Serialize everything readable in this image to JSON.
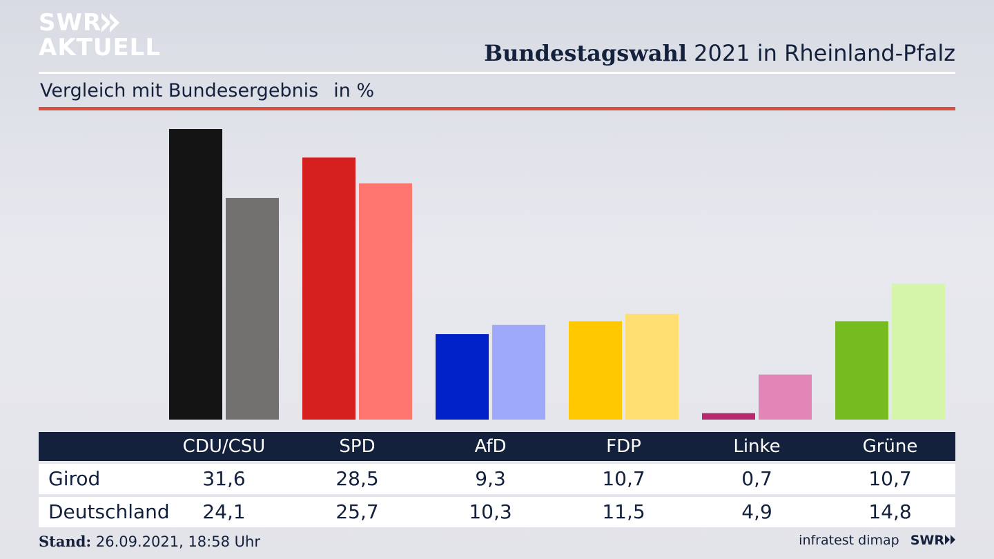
{
  "brand": {
    "line1": "SWR",
    "line2": "AKTUELL"
  },
  "header": {
    "title_bold": "Bundestagswahl",
    "title_rest": " 2021 in Rheinland-Pfalz",
    "subtitle": "Vergleich mit Bundesergebnis",
    "unit": "in %"
  },
  "colors": {
    "navy": "#14213d",
    "accent_red": "#d9513e"
  },
  "chart_data": {
    "type": "bar",
    "categories": [
      "CDU/CSU",
      "SPD",
      "AfD",
      "FDP",
      "Linke",
      "Grüne"
    ],
    "series": [
      {
        "name": "Girod",
        "values": [
          31.6,
          28.5,
          9.3,
          10.7,
          0.7,
          10.7
        ],
        "colors": [
          "#141414",
          "#d61f1f",
          "#0021c8",
          "#ffc800",
          "#b7296e",
          "#76bc21"
        ]
      },
      {
        "name": "Deutschland",
        "values": [
          24.1,
          25.7,
          10.3,
          11.5,
          4.9,
          14.8
        ],
        "colors": [
          "#727170",
          "#ff7570",
          "#9fa9fc",
          "#ffdf72",
          "#e186b6",
          "#d5f6aa"
        ]
      }
    ],
    "value_labels": [
      [
        "31,6",
        "28,5",
        "9,3",
        "10,7",
        "0,7",
        "10,7"
      ],
      [
        "24,1",
        "25,7",
        "10,3",
        "11,5",
        "4,9",
        "14,8"
      ]
    ],
    "ylim": [
      0,
      31.6
    ],
    "grid": false
  },
  "footer": {
    "stand_label": "Stand:",
    "stand_value": " 26.09.2021, 18:58 Uhr",
    "source": "infratest dimap",
    "logo": "SWR"
  }
}
